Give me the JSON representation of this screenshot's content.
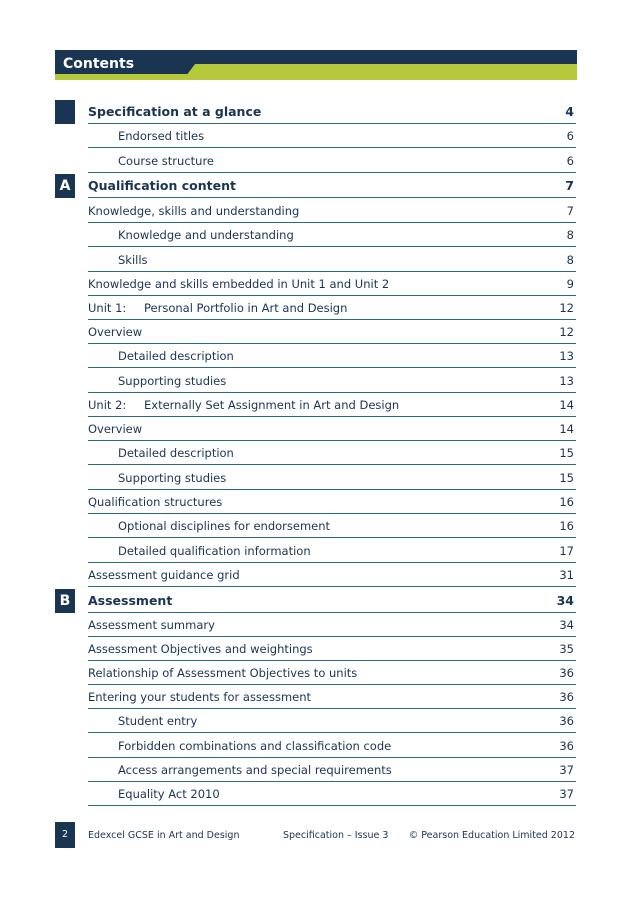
{
  "header": {
    "title": "Contents"
  },
  "markers": {
    "a": "A",
    "b": "B"
  },
  "toc": [
    {
      "label": "Specification at a glance",
      "page": "4"
    },
    {
      "label": "Endorsed titles",
      "page": "6"
    },
    {
      "label": "Course structure",
      "page": "6"
    },
    {
      "label": "Qualification content",
      "page": "7"
    },
    {
      "label": "Knowledge, skills and understanding",
      "page": "7"
    },
    {
      "label": "Knowledge and understanding",
      "page": "8"
    },
    {
      "label": "Skills",
      "page": "8"
    },
    {
      "label": "Knowledge and skills embedded in Unit 1 and Unit 2",
      "page": "9"
    },
    {
      "number": "Unit 1:",
      "label": "Personal Portfolio in Art and Design",
      "page": "12"
    },
    {
      "label": "Overview",
      "page": "12"
    },
    {
      "label": "Detailed description",
      "page": "13"
    },
    {
      "label": "Supporting studies",
      "page": "13"
    },
    {
      "number": "Unit 2:",
      "label": "Externally Set Assignment in Art and Design",
      "page": "14"
    },
    {
      "label": "Overview",
      "page": "14"
    },
    {
      "label": "Detailed description",
      "page": "15"
    },
    {
      "label": "Supporting studies",
      "page": "15"
    },
    {
      "label": "Qualification structures",
      "page": "16"
    },
    {
      "label": "Optional disciplines for endorsement",
      "page": "16"
    },
    {
      "label": "Detailed qualification information",
      "page": "17"
    },
    {
      "label": "Assessment guidance grid",
      "page": "31"
    },
    {
      "label": "Assessment",
      "page": "34"
    },
    {
      "label": "Assessment summary",
      "page": "34"
    },
    {
      "label": "Assessment Objectives and weightings",
      "page": "35"
    },
    {
      "label": "Relationship of Assessment Objectives to units",
      "page": "36"
    },
    {
      "label": "Entering your students for assessment",
      "page": "36"
    },
    {
      "label": "Student entry",
      "page": "36"
    },
    {
      "label": "Forbidden combinations and classification code",
      "page": "36"
    },
    {
      "label": "Access arrangements and special requirements",
      "page": "37"
    },
    {
      "label": "Equality Act 2010",
      "page": "37"
    }
  ],
  "footer": {
    "page_number": "2",
    "left": "Edexcel GCSE in Art and Design",
    "middle": "Specification – Issue 3",
    "right": "© Pearson Education Limited 2012"
  }
}
